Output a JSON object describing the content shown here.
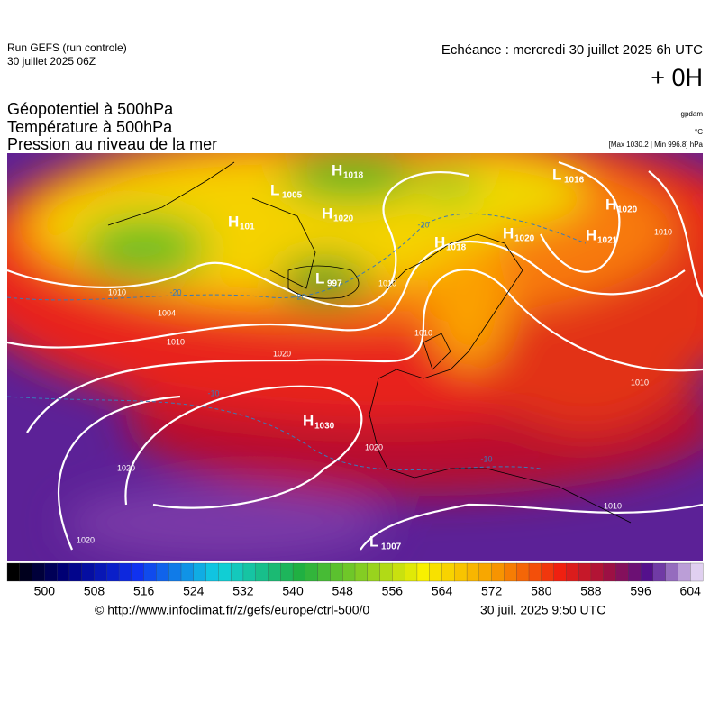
{
  "header": {
    "run": "Run GEFS (run controle)",
    "run_date": "30 juillet 2025 06Z",
    "echeance": "Echéance : mercredi 30 juillet 2025 6h UTC",
    "lead": "+ 0H"
  },
  "fields": [
    "Géopotentiel à 500hPa",
    "Température à 500hPa",
    "Pression au niveau de la mer"
  ],
  "units": [
    "gpdam",
    "°C",
    "[Max 1030.2 | Min 996.8] hPa"
  ],
  "pressure_centers": [
    {
      "type": "H",
      "value": "1018"
    },
    {
      "type": "L",
      "value": "1005"
    },
    {
      "type": "H",
      "value": "1020"
    },
    {
      "type": "H",
      "value": "101"
    },
    {
      "type": "L",
      "value": "997"
    },
    {
      "type": "H",
      "value": "1018"
    },
    {
      "type": "H",
      "value": "1020"
    },
    {
      "type": "H",
      "value": "1021"
    },
    {
      "type": "L",
      "value": "1016"
    },
    {
      "type": "H",
      "value": "1020"
    },
    {
      "type": "H",
      "value": "1030"
    },
    {
      "type": "L",
      "value": "1007"
    }
  ],
  "isobar_labels": [
    "1010",
    "1004",
    "1010",
    "1020",
    "1010",
    "1010",
    "1020",
    "1020",
    "1010",
    "1010",
    "1020",
    "1010"
  ],
  "isotherm_labels": [
    "-20",
    "-20",
    "-20",
    "-10",
    "-10"
  ],
  "colorbar": {
    "lim": [
      494,
      606
    ],
    "ticks": [
      500,
      508,
      516,
      524,
      532,
      540,
      548,
      556,
      564,
      572,
      580,
      588,
      596,
      604
    ]
  },
  "footer": {
    "url": "© http://www.infoclimat.fr/z/gefs/europe/ctrl-500/0",
    "timestamp": "30 juil. 2025  9:50 UTC"
  }
}
